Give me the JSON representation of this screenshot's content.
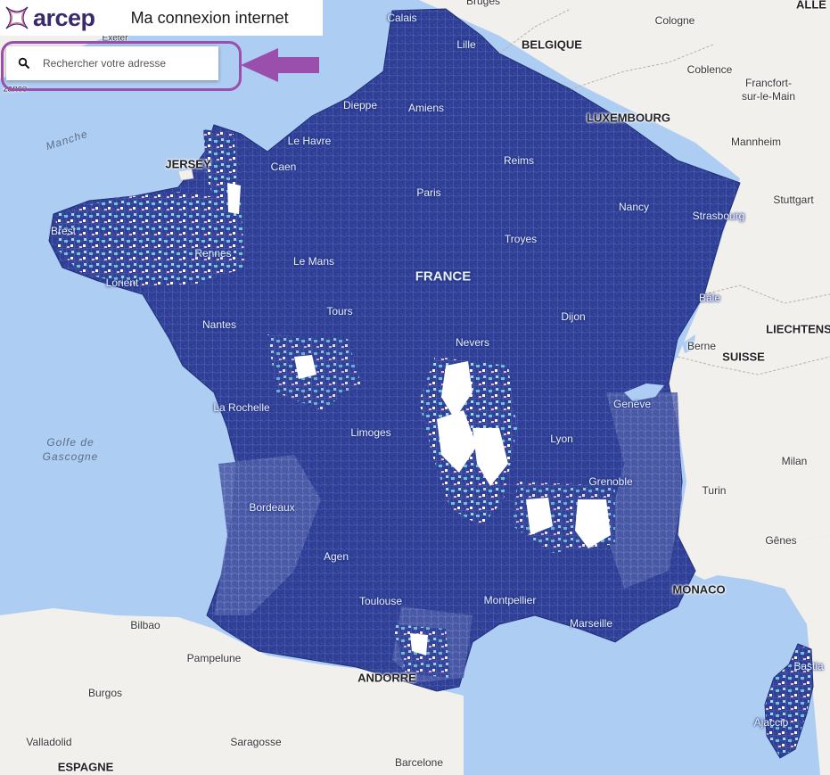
{
  "header": {
    "logo_text": "arcep",
    "title": "Ma connexion internet"
  },
  "search": {
    "placeholder": "Rechercher votre adresse"
  },
  "colors": {
    "coverage_dark": "#2f3f96",
    "coverage_mid": "#4a5aa8",
    "coverage_light": "#6fc3d6",
    "coverage_pink": "#f2b6d2",
    "sea": "#aecdf2",
    "land": "#f2f0ed",
    "highlight": "#9b4fad"
  },
  "labels": {
    "countries": {
      "belgique": "BELGIQUE",
      "luxembourg": "LUXEMBOURG",
      "france": "FRANCE",
      "suisse": "SUISSE",
      "espagne": "ESPAGNE",
      "andorre": "ANDORRE",
      "monaco": "MONACO",
      "liechtenstein": "LIECHTENS",
      "jersey": "JERSEY",
      "allemagne": "ALLE"
    },
    "seas": {
      "manche": "Manche",
      "golfe": "Golfe de",
      "gascogne": "Gascogne"
    },
    "cities_fr": {
      "calais": "Calais",
      "lille": "Lille",
      "dieppe": "Dieppe",
      "amiens": "Amiens",
      "lehavre": "Le Havre",
      "caen": "Caen",
      "reims": "Reims",
      "paris": "Paris",
      "nancy": "Nancy",
      "strasbourg": "Strasbourg",
      "brest": "Brest",
      "rennes": "Rennes",
      "troyes": "Troyes",
      "lorient": "Lorient",
      "lemans": "Le Mans",
      "tours": "Tours",
      "nantes": "Nantes",
      "dijon": "Dijon",
      "bale": "Bâle",
      "nevers": "Nevers",
      "larochelle": "La Rochelle",
      "geneve": "Genève",
      "limoges": "Limoges",
      "lyon": "Lyon",
      "grenoble": "Grenoble",
      "bordeaux": "Bordeaux",
      "agen": "Agen",
      "toulouse": "Toulouse",
      "montpellier": "Montpellier",
      "marseille": "Marseille",
      "bastia": "Bastia",
      "ajaccio": "Ajaccio"
    },
    "cities_other": {
      "bruges": "Bruges",
      "cologne": "Cologne",
      "coblence": "Coblence",
      "frankfurt": "Francfort-",
      "frankfurt2": "sur-le-Main",
      "mannheim": "Mannheim",
      "stuttgart": "Stuttgart",
      "berne": "Berne",
      "milan": "Milan",
      "turin": "Turin",
      "genes": "Gênes",
      "bilbao": "Bilbao",
      "pampelune": "Pampelune",
      "burgos": "Burgos",
      "valladolid": "Valladolid",
      "saragosse": "Saragosse",
      "barcelone": "Barcelone",
      "exeter": "Exeter",
      "penzance": "zance"
    }
  }
}
